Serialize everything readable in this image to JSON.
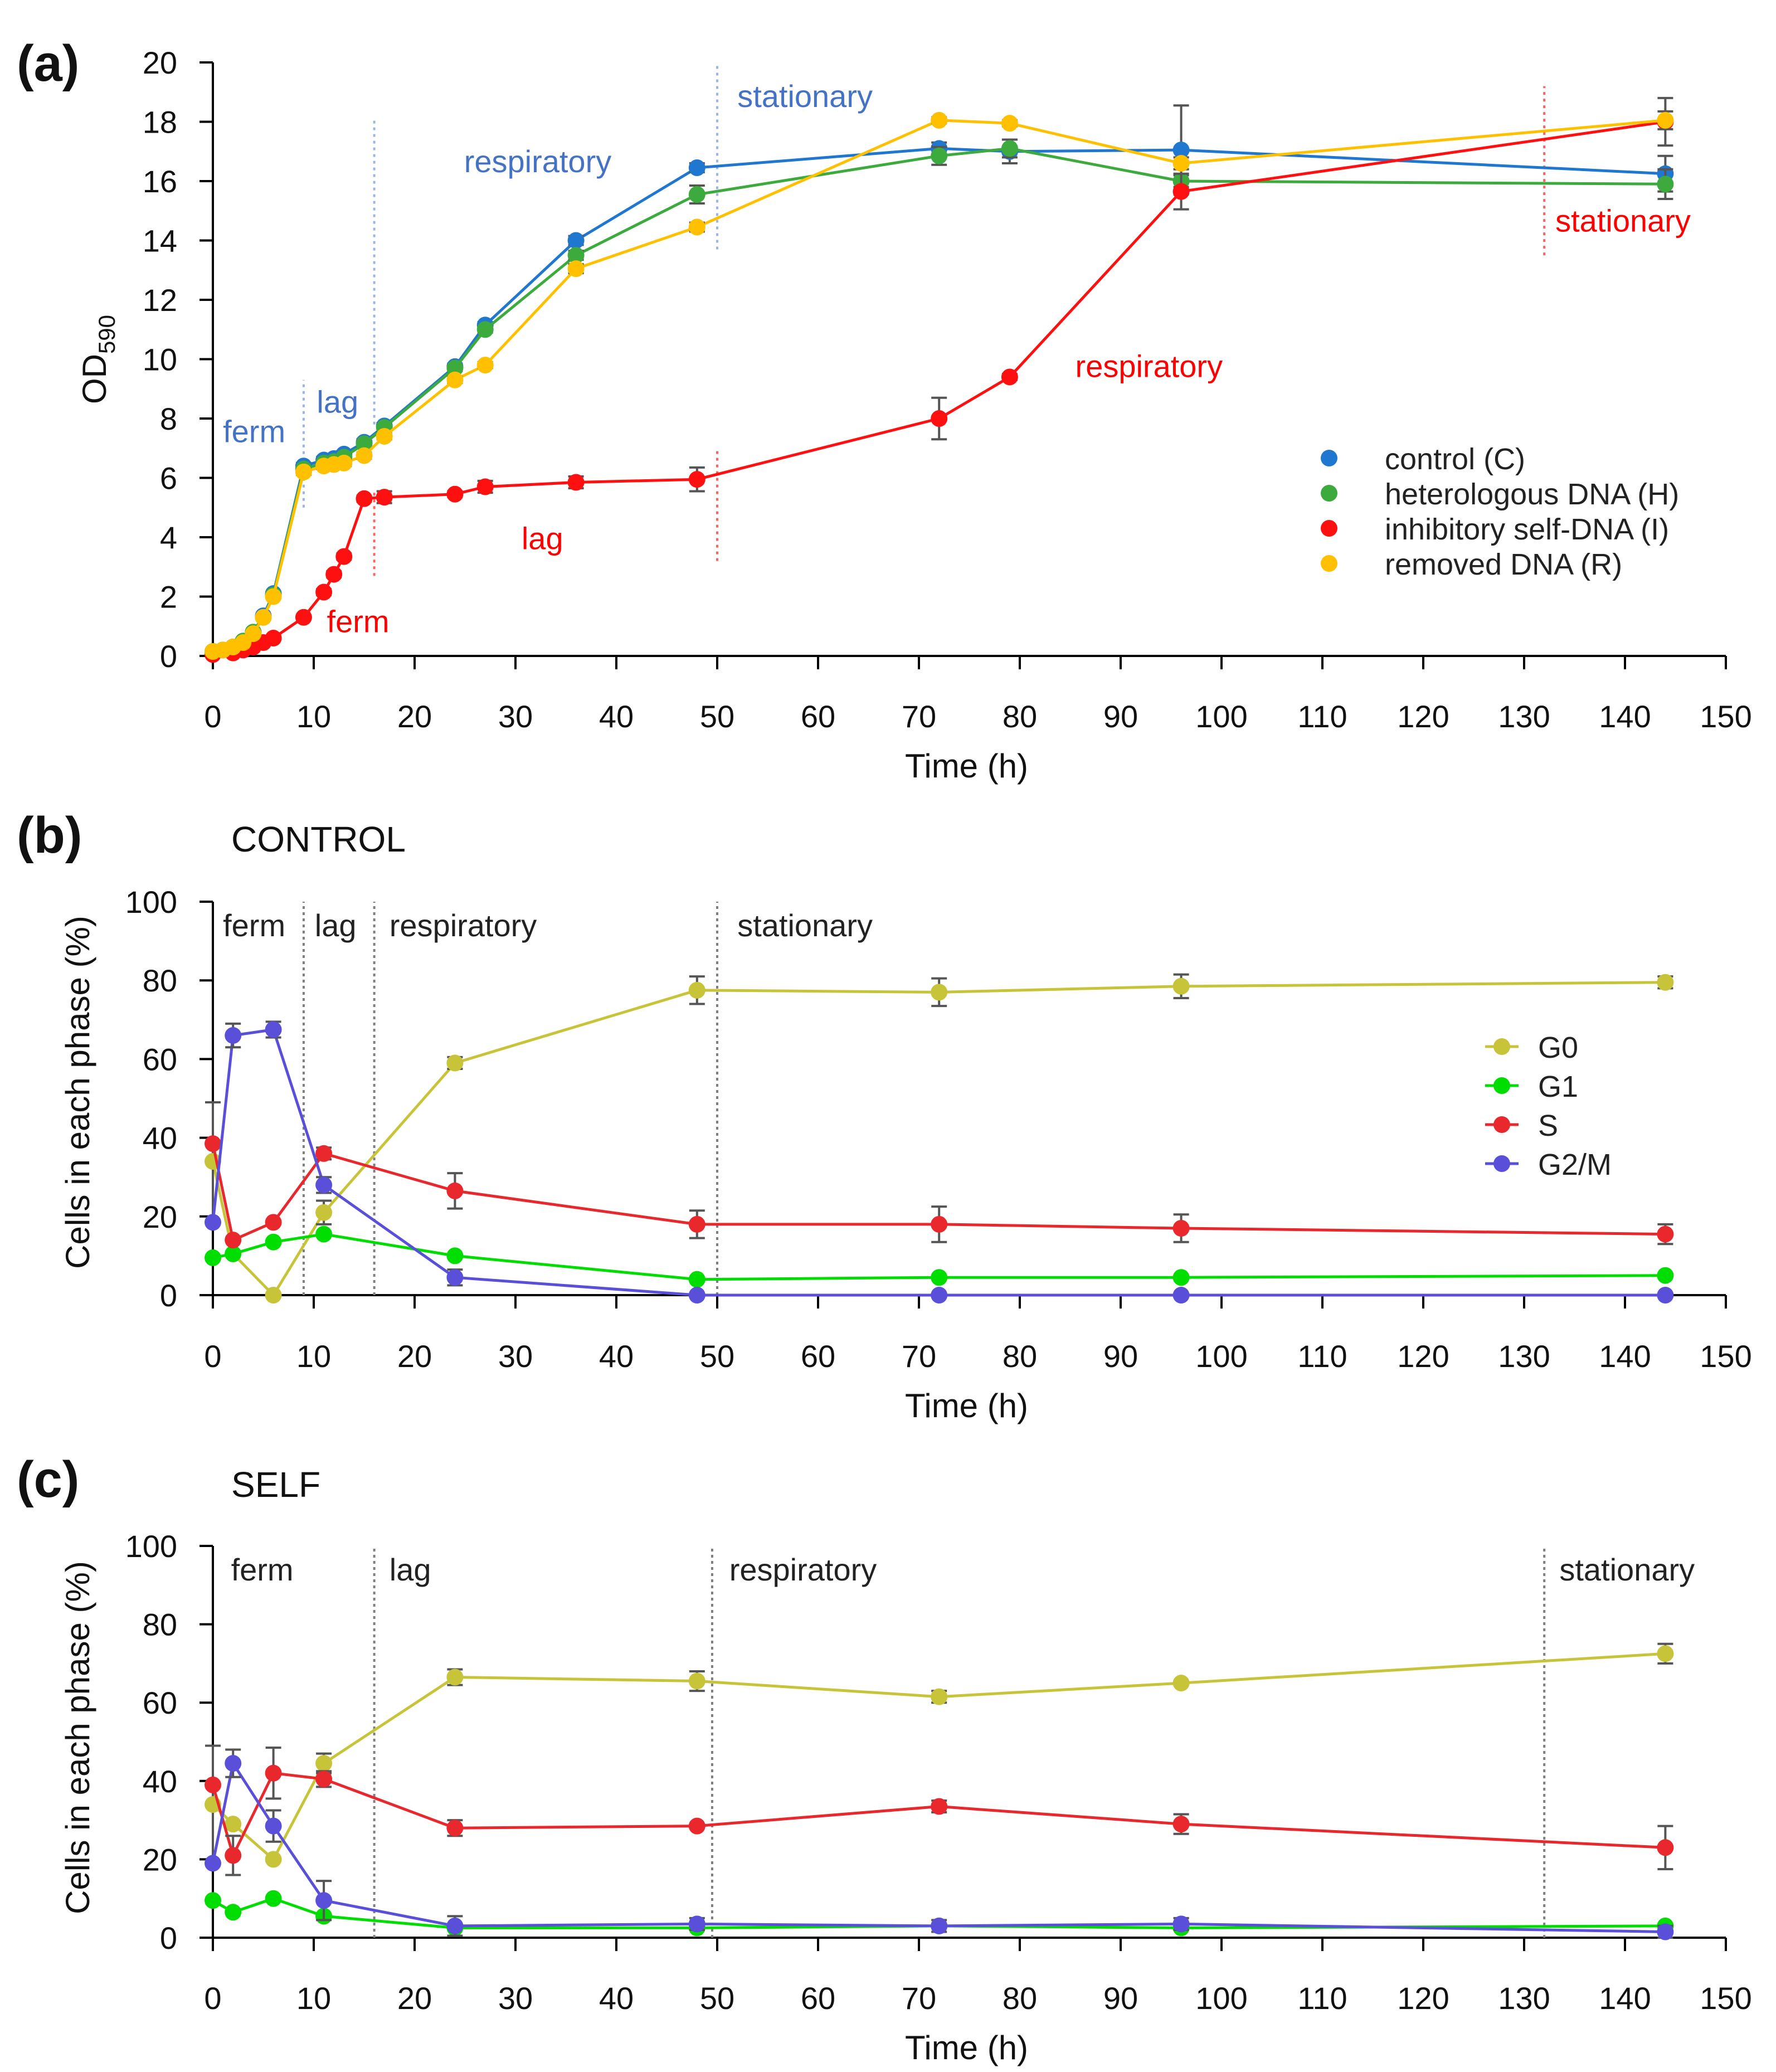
{
  "chart_data": [
    {
      "type": "line",
      "panel_label": "(a)",
      "title": "",
      "xlabel": "Time (h)",
      "ylabel_main": "OD",
      "ylabel_sub": "590",
      "xlim": [
        0,
        150
      ],
      "ylim": [
        0,
        20
      ],
      "x_ticks": [
        "0",
        "10",
        "20",
        "30",
        "40",
        "50",
        "60",
        "70",
        "80",
        "90",
        "100",
        "110",
        "120",
        "130",
        "140",
        "150"
      ],
      "y_ticks": [
        "0",
        "2",
        "4",
        "6",
        "8",
        "10",
        "12",
        "14",
        "16",
        "18",
        "20"
      ],
      "legend_position": "lower-right",
      "phase_colors": {
        "control": "#4472C4",
        "self": "#FF0000"
      },
      "phase_labels": [
        {
          "text": "ferm",
          "group": "control"
        },
        {
          "text": "lag",
          "group": "control"
        },
        {
          "text": "respiratory",
          "group": "control"
        },
        {
          "text": "stationary",
          "group": "control"
        },
        {
          "text": "ferm",
          "group": "self"
        },
        {
          "text": "lag",
          "group": "self"
        },
        {
          "text": "respiratory",
          "group": "self"
        },
        {
          "text": "stationary",
          "group": "self"
        }
      ],
      "series": [
        {
          "name": "control (C)",
          "color": "#1F77D0",
          "x": [
            0,
            1,
            2,
            3,
            4,
            5,
            6,
            9,
            11,
            12,
            13,
            15,
            17,
            24,
            27,
            36,
            48,
            72,
            79,
            96,
            144
          ],
          "y": [
            0.15,
            0.2,
            0.3,
            0.5,
            0.8,
            1.35,
            2.1,
            6.4,
            6.6,
            6.65,
            6.8,
            7.2,
            7.75,
            9.75,
            11.15,
            14.0,
            16.45,
            17.1,
            17.0,
            17.05,
            16.25
          ],
          "err": [
            0,
            0,
            0,
            0,
            0,
            0,
            0,
            0.1,
            0.1,
            0.1,
            0.1,
            0.1,
            0.1,
            0.1,
            0.1,
            0.15,
            0.15,
            0.2,
            0.4,
            1.5,
            0.6
          ]
        },
        {
          "name": "heterologous DNA (H)",
          "color": "#3CAA3C",
          "x": [
            0,
            1,
            2,
            3,
            4,
            5,
            6,
            9,
            11,
            12,
            13,
            15,
            17,
            24,
            27,
            36,
            48,
            72,
            79,
            96,
            144
          ],
          "y": [
            0.15,
            0.2,
            0.3,
            0.5,
            0.8,
            1.3,
            2.05,
            6.3,
            6.5,
            6.55,
            6.7,
            7.15,
            7.7,
            9.7,
            11.0,
            13.5,
            15.55,
            16.85,
            17.1,
            16.0,
            15.9
          ],
          "err": [
            0,
            0,
            0,
            0,
            0,
            0,
            0,
            0.1,
            0.1,
            0.1,
            0.1,
            0.1,
            0.1,
            0.1,
            0.1,
            0.15,
            0.3,
            0.3,
            0.3,
            0.2,
            0.5
          ]
        },
        {
          "name": "inhibitory self-DNA (I)",
          "color": "#FF1010",
          "x": [
            0,
            2,
            3,
            4,
            5,
            6,
            9,
            11,
            12,
            13,
            15,
            17,
            24,
            27,
            36,
            48,
            72,
            79,
            96,
            144
          ],
          "y": [
            0.05,
            0.1,
            0.2,
            0.3,
            0.45,
            0.6,
            1.3,
            2.15,
            2.75,
            3.35,
            5.3,
            5.35,
            5.45,
            5.7,
            5.85,
            5.95,
            8.0,
            9.4,
            15.65,
            18.0
          ],
          "err": [
            0,
            0,
            0,
            0,
            0,
            0,
            0,
            0.1,
            0.1,
            0.1,
            0.1,
            0.2,
            0.1,
            0.2,
            0.2,
            0.4,
            0.7,
            0.1,
            0.6,
            0.8
          ]
        },
        {
          "name": "removed DNA (R)",
          "color": "#FFC000",
          "x": [
            0,
            1,
            2,
            3,
            4,
            5,
            6,
            9,
            11,
            12,
            13,
            15,
            17,
            24,
            27,
            36,
            48,
            72,
            79,
            96,
            144
          ],
          "y": [
            0.15,
            0.2,
            0.3,
            0.45,
            0.75,
            1.3,
            2.0,
            6.2,
            6.4,
            6.45,
            6.5,
            6.75,
            7.4,
            9.3,
            9.8,
            13.05,
            14.45,
            18.05,
            17.95,
            16.6,
            18.05
          ],
          "err": [
            0,
            0,
            0,
            0,
            0,
            0,
            0,
            0.1,
            0.1,
            0.1,
            0.1,
            0.1,
            0.1,
            0.1,
            0.1,
            0.15,
            0.15,
            0.1,
            0.1,
            0.2,
            0.3
          ]
        }
      ]
    },
    {
      "type": "line",
      "panel_label": "(b)",
      "title": "CONTROL",
      "xlabel": "Time (h)",
      "ylabel": "Cells in each phase (%)",
      "xlim": [
        0,
        150
      ],
      "ylim": [
        0,
        100
      ],
      "x_ticks": [
        "0",
        "10",
        "20",
        "30",
        "40",
        "50",
        "60",
        "70",
        "80",
        "90",
        "100",
        "110",
        "120",
        "130",
        "140",
        "150"
      ],
      "y_ticks": [
        "0",
        "20",
        "40",
        "60",
        "80",
        "100"
      ],
      "legend_position": "right",
      "phase_labels": [
        "ferm",
        "lag",
        "respiratory",
        "stationary"
      ],
      "series": [
        {
          "name": "G0",
          "color": "#C8C43A",
          "x": [
            0,
            2,
            6,
            11,
            24,
            48,
            72,
            96,
            144
          ],
          "y": [
            34,
            10.5,
            0,
            21,
            59,
            77.5,
            77,
            78.5,
            79.5
          ],
          "err": [
            15,
            0,
            0,
            3,
            1.5,
            3.5,
            3.5,
            3,
            1.5
          ]
        },
        {
          "name": "G1",
          "color": "#00DD00",
          "x": [
            0,
            2,
            6,
            11,
            24,
            48,
            72,
            96,
            144
          ],
          "y": [
            9.5,
            10.5,
            13.5,
            15.5,
            10,
            4,
            4.5,
            4.5,
            5
          ],
          "err": [
            0,
            0,
            0,
            0,
            0,
            0,
            0,
            0,
            0
          ]
        },
        {
          "name": "S",
          "color": "#E8282C",
          "x": [
            0,
            2,
            6,
            11,
            24,
            48,
            72,
            96,
            144
          ],
          "y": [
            38.5,
            14,
            18.5,
            36,
            26.5,
            18,
            18,
            17,
            15.5
          ],
          "err": [
            0,
            0,
            0,
            1.5,
            4.5,
            3.5,
            4.5,
            3.5,
            2.5
          ]
        },
        {
          "name": "G2/M",
          "color": "#5A4FD8",
          "x": [
            0,
            2,
            6,
            11,
            24,
            48,
            72,
            96,
            144
          ],
          "y": [
            18.5,
            66,
            67.5,
            28,
            4.5,
            0,
            0,
            0,
            0
          ],
          "err": [
            0,
            3,
            2,
            2,
            2,
            0,
            0,
            0,
            0
          ]
        }
      ]
    },
    {
      "type": "line",
      "panel_label": "(c)",
      "title": "SELF",
      "xlabel": "Time (h)",
      "ylabel": "Cells in each phase (%)",
      "xlim": [
        0,
        150
      ],
      "ylim": [
        0,
        100
      ],
      "x_ticks": [
        "0",
        "10",
        "20",
        "30",
        "40",
        "50",
        "60",
        "70",
        "80",
        "90",
        "100",
        "110",
        "120",
        "130",
        "140",
        "150"
      ],
      "y_ticks": [
        "0",
        "20",
        "40",
        "60",
        "80",
        "100"
      ],
      "phase_labels": [
        "ferm",
        "lag",
        "respiratory",
        "stationary"
      ],
      "series": [
        {
          "name": "G0",
          "color": "#C8C43A",
          "x": [
            0,
            2,
            6,
            11,
            24,
            48,
            72,
            96,
            144
          ],
          "y": [
            34,
            29,
            20,
            44.5,
            66.5,
            65.5,
            61.5,
            65,
            72.5
          ],
          "err": [
            15,
            0,
            0,
            2.5,
            2,
            2.5,
            1.5,
            0,
            2.5
          ]
        },
        {
          "name": "G1",
          "color": "#00DD00",
          "x": [
            0,
            2,
            6,
            11,
            24,
            48,
            72,
            96,
            144
          ],
          "y": [
            9.5,
            6.5,
            10,
            5.5,
            2.5,
            2.5,
            3,
            2.5,
            3
          ],
          "err": [
            0,
            0,
            0,
            0,
            0,
            0,
            0,
            0,
            0
          ]
        },
        {
          "name": "S",
          "color": "#E8282C",
          "x": [
            0,
            2,
            6,
            11,
            24,
            48,
            72,
            96,
            144
          ],
          "y": [
            39,
            21,
            42,
            40.5,
            28,
            28.5,
            33.5,
            29,
            23
          ],
          "err": [
            0,
            5,
            6.5,
            2,
            2,
            0,
            1.5,
            2.5,
            5.5
          ]
        },
        {
          "name": "G2/M",
          "color": "#5A4FD8",
          "x": [
            0,
            2,
            6,
            11,
            24,
            48,
            72,
            96,
            144
          ],
          "y": [
            19,
            44.5,
            28.5,
            9.5,
            3,
            3.5,
            3,
            3.5,
            1.5
          ],
          "err": [
            0,
            3.5,
            4,
            5,
            2.5,
            1.5,
            1.5,
            1.5,
            1.5
          ]
        }
      ]
    }
  ]
}
